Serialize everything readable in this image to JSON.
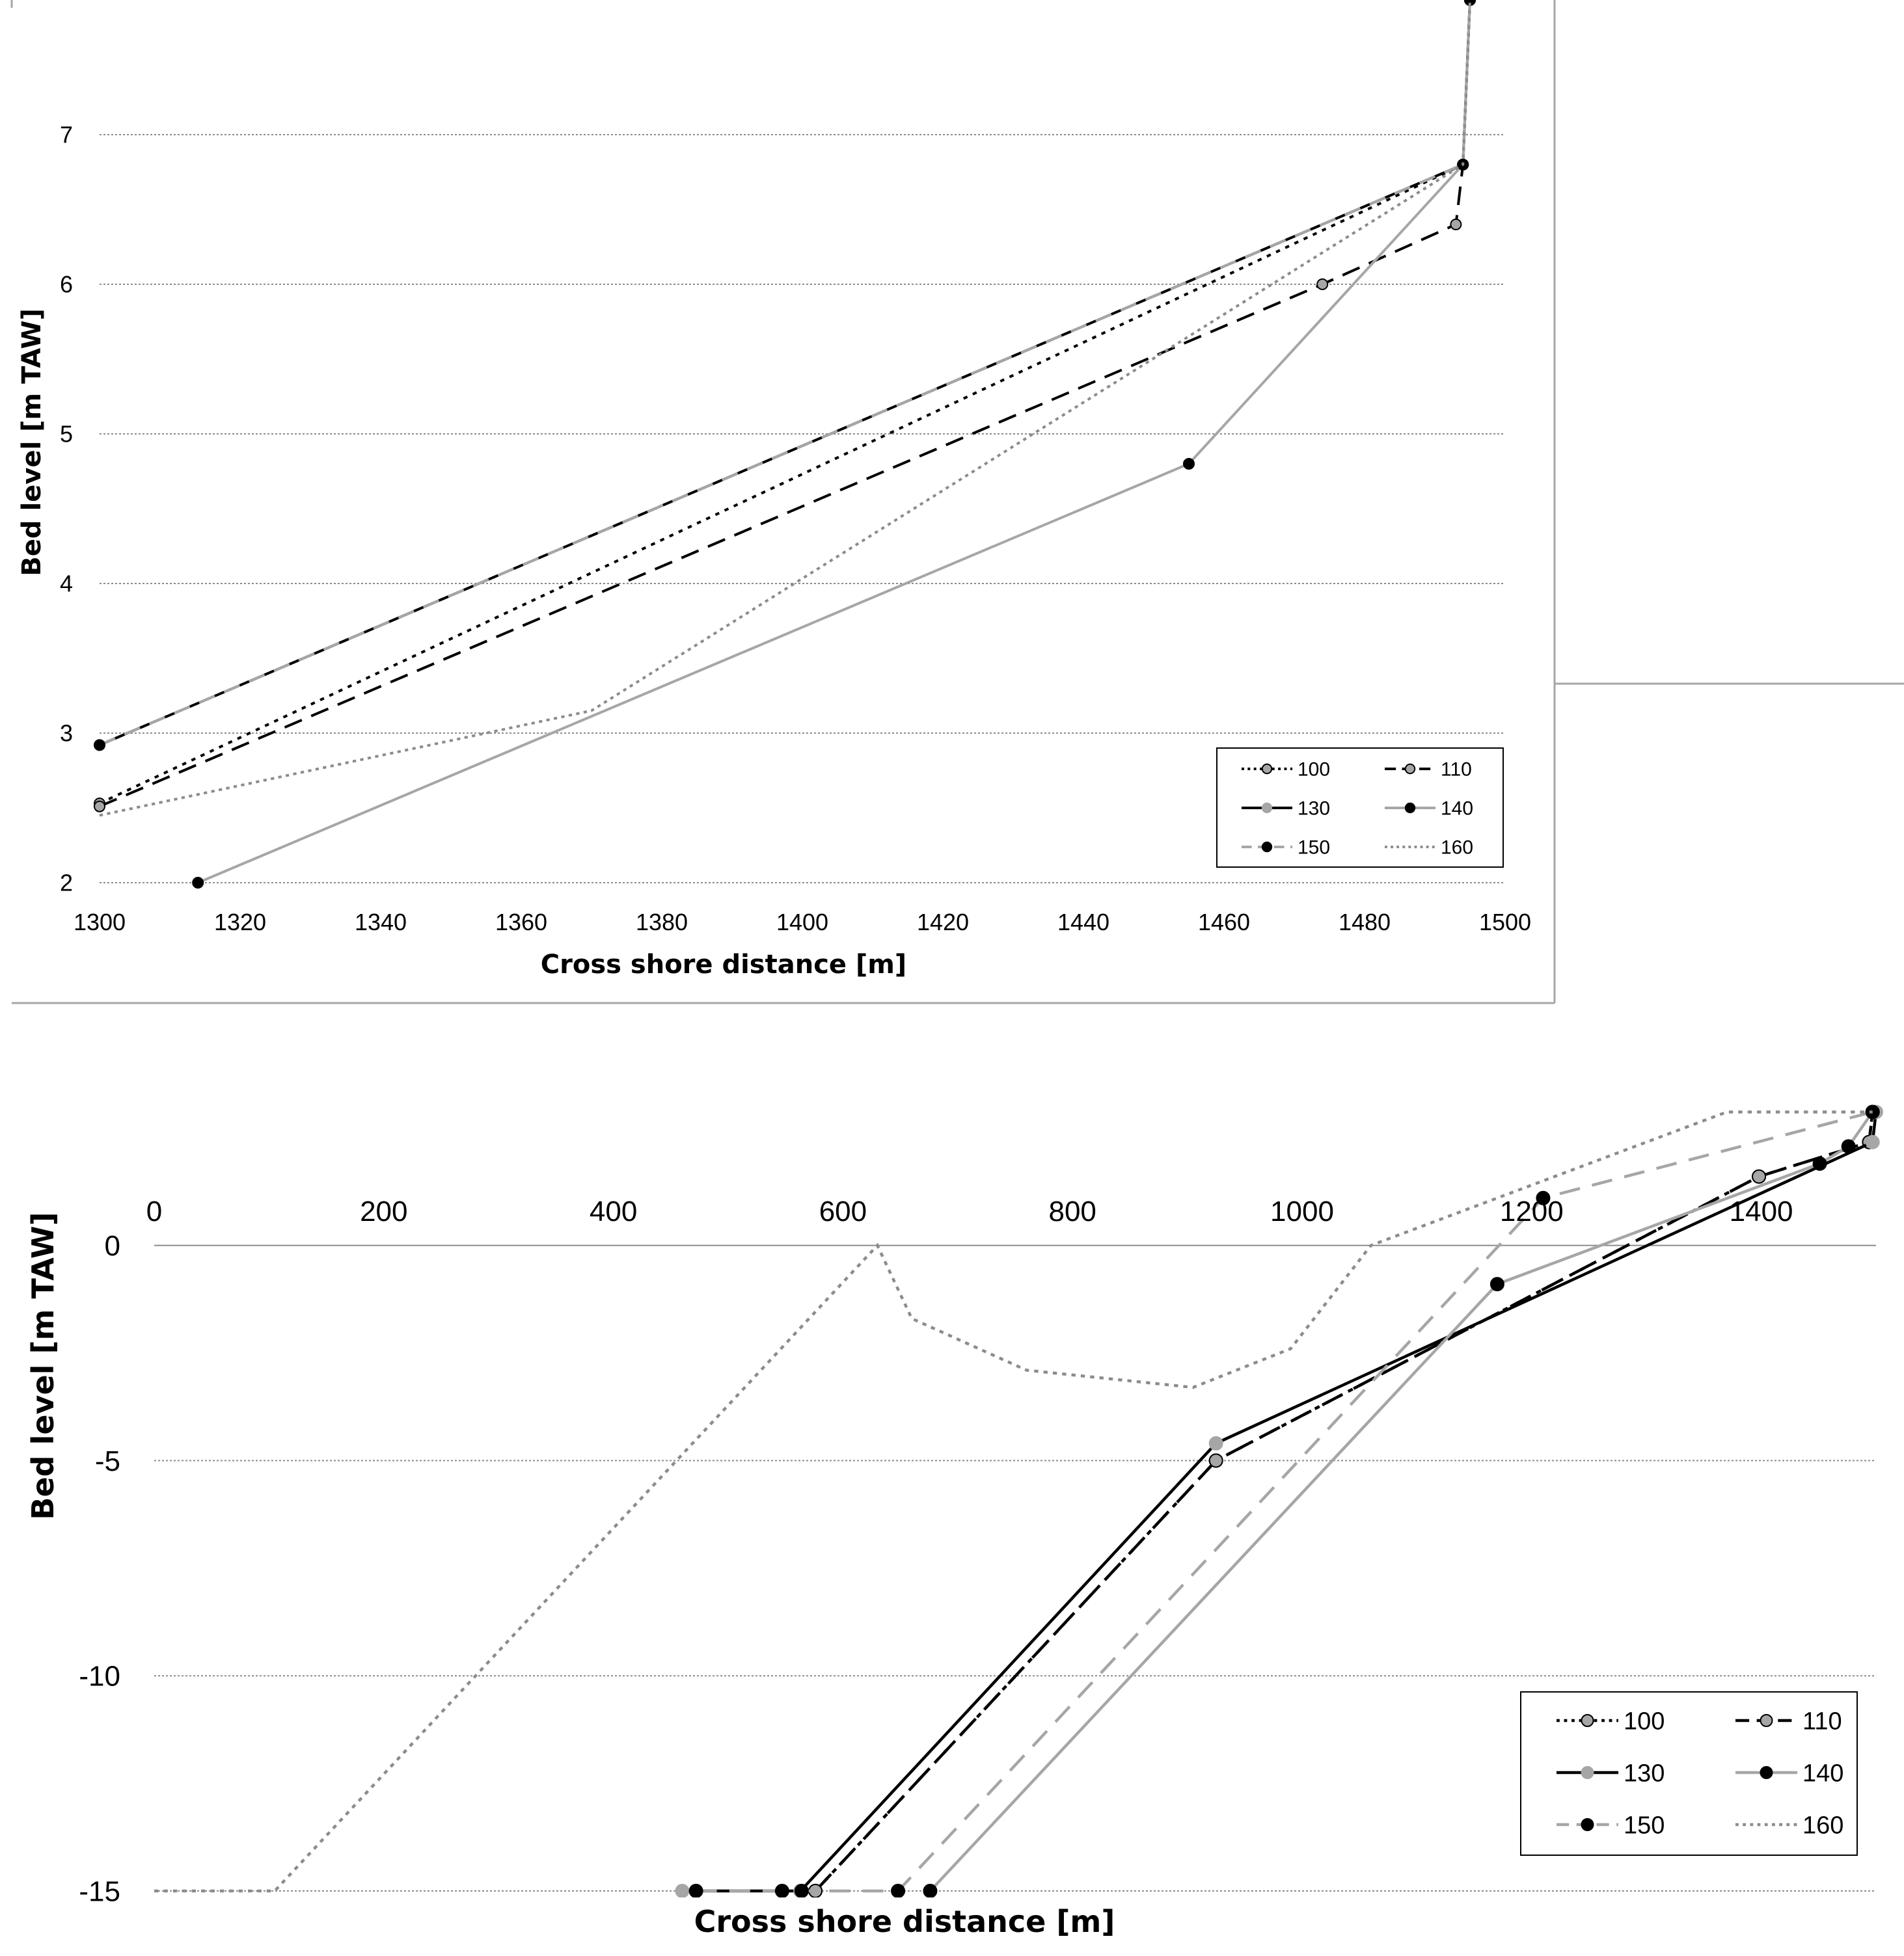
{
  "chart_data": [
    {
      "id": "main",
      "type": "line",
      "xlabel": "Cross shore distance [m]",
      "ylabel": "Bed level [m TAW]",
      "xlim": [
        0,
        1500
      ],
      "ylim": [
        -15,
        3.5
      ],
      "xticks": [
        0,
        200,
        400,
        600,
        800,
        1000,
        1200,
        1400
      ],
      "yticks": [
        0,
        -5,
        -10,
        -15
      ],
      "grid": true,
      "legend": "bottom-right",
      "series": [
        {
          "name": "100",
          "points": [
            [
              576,
              -15
            ],
            [
              925,
              -5
            ],
            [
              1398,
              1.6
            ],
            [
              1494,
              2.4
            ],
            [
              1497,
              3.1
            ]
          ]
        },
        {
          "name": "110",
          "points": [
            [
              576,
              -15
            ],
            [
              925,
              -5
            ],
            [
              1398,
              1.6
            ],
            [
              1494,
              2.4
            ],
            [
              1497,
              3.1
            ]
          ]
        },
        {
          "name": "130",
          "points": [
            [
              460,
              -15
            ],
            [
              563,
              -15
            ],
            [
              925,
              -4.6
            ],
            [
              1497,
              2.4
            ],
            [
              1500,
              3.1
            ]
          ]
        },
        {
          "name": "140",
          "points": [
            [
              676,
              -15
            ],
            [
              1170,
              -0.9
            ],
            [
              1451,
              1.9
            ],
            [
              1476,
              2.3
            ],
            [
              1497,
              3.1
            ]
          ]
        },
        {
          "name": "150",
          "points": [
            [
              472,
              -15
            ],
            [
              547,
              -15
            ],
            [
              564,
              -15
            ],
            [
              648,
              -15
            ],
            [
              1210,
              1.1
            ],
            [
              1497,
              3.1
            ]
          ]
        },
        {
          "name": "160",
          "points": [
            [
              0,
              -15
            ],
            [
              105,
              -15
            ],
            [
              630,
              0
            ],
            [
              660,
              -1.7
            ],
            [
              760,
              -2.9
            ],
            [
              905,
              -3.3
            ],
            [
              990,
              -2.4
            ],
            [
              1060,
              0
            ],
            [
              1200,
              1.4
            ],
            [
              1370,
              3.1
            ],
            [
              1497,
              3.1
            ]
          ]
        }
      ]
    },
    {
      "id": "inset",
      "type": "line",
      "xlabel": "Cross shore distance [m]",
      "ylabel": "Bed level [m TAW]",
      "xlim": [
        1300,
        1500
      ],
      "ylim": [
        2,
        7.9
      ],
      "xticks": [
        1300,
        1320,
        1340,
        1360,
        1380,
        1400,
        1420,
        1440,
        1460,
        1480,
        1500
      ],
      "yticks": [
        2,
        3,
        4,
        5,
        6,
        7
      ],
      "grid": true,
      "legend": "bottom-right",
      "series": [
        {
          "name": "100",
          "points": [
            [
              1300,
              2.53
            ],
            [
              1494,
              6.8
            ],
            [
              1495,
              7.9
            ]
          ]
        },
        {
          "name": "110",
          "points": [
            [
              1300,
              2.51
            ],
            [
              1474,
              6.0
            ],
            [
              1493,
              6.4
            ],
            [
              1494,
              6.8
            ],
            [
              1495,
              7.9
            ]
          ]
        },
        {
          "name": "130",
          "points": [
            [
              1300,
              2.92
            ],
            [
              1494,
              6.8
            ],
            [
              1495,
              7.9
            ]
          ]
        },
        {
          "name": "140",
          "points": [
            [
              1314,
              2.0
            ],
            [
              1455,
              4.8
            ],
            [
              1494,
              6.8
            ],
            [
              1495,
              7.9
            ]
          ]
        },
        {
          "name": "150",
          "points": [
            [
              1300,
              2.92
            ],
            [
              1494,
              6.8
            ],
            [
              1495,
              7.9
            ]
          ]
        },
        {
          "name": "160",
          "points": [
            [
              1300,
              2.45
            ],
            [
              1370,
              3.15
            ],
            [
              1494,
              6.8
            ],
            [
              1495,
              7.9
            ]
          ]
        }
      ]
    }
  ],
  "colors": {
    "s100": "#000000",
    "s110": "#000000",
    "s130": "#000000",
    "s140": "#a6a6a6",
    "s150": "#a6a6a6",
    "s160": "#8c8c8c",
    "marker_gray": "#a6a6a6",
    "marker_black": "#000000",
    "grid": "#8c8c8c",
    "frame": "#a6a6a6"
  }
}
